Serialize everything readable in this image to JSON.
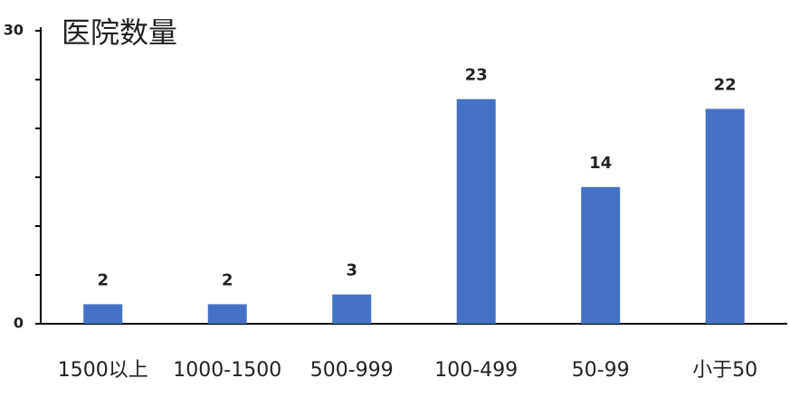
{
  "chart_data": {
    "type": "bar",
    "title": "医院数量",
    "categories": [
      "1500以上",
      "1000-1500",
      "500-999",
      "100-499",
      "50-99",
      "小于50"
    ],
    "values": [
      2,
      2,
      3,
      23,
      14,
      22
    ],
    "color": "#4472c4",
    "ylim": [
      0,
      30
    ],
    "yticks": [
      0,
      30
    ],
    "yminorticks": [
      5,
      10,
      15,
      20,
      25
    ]
  }
}
